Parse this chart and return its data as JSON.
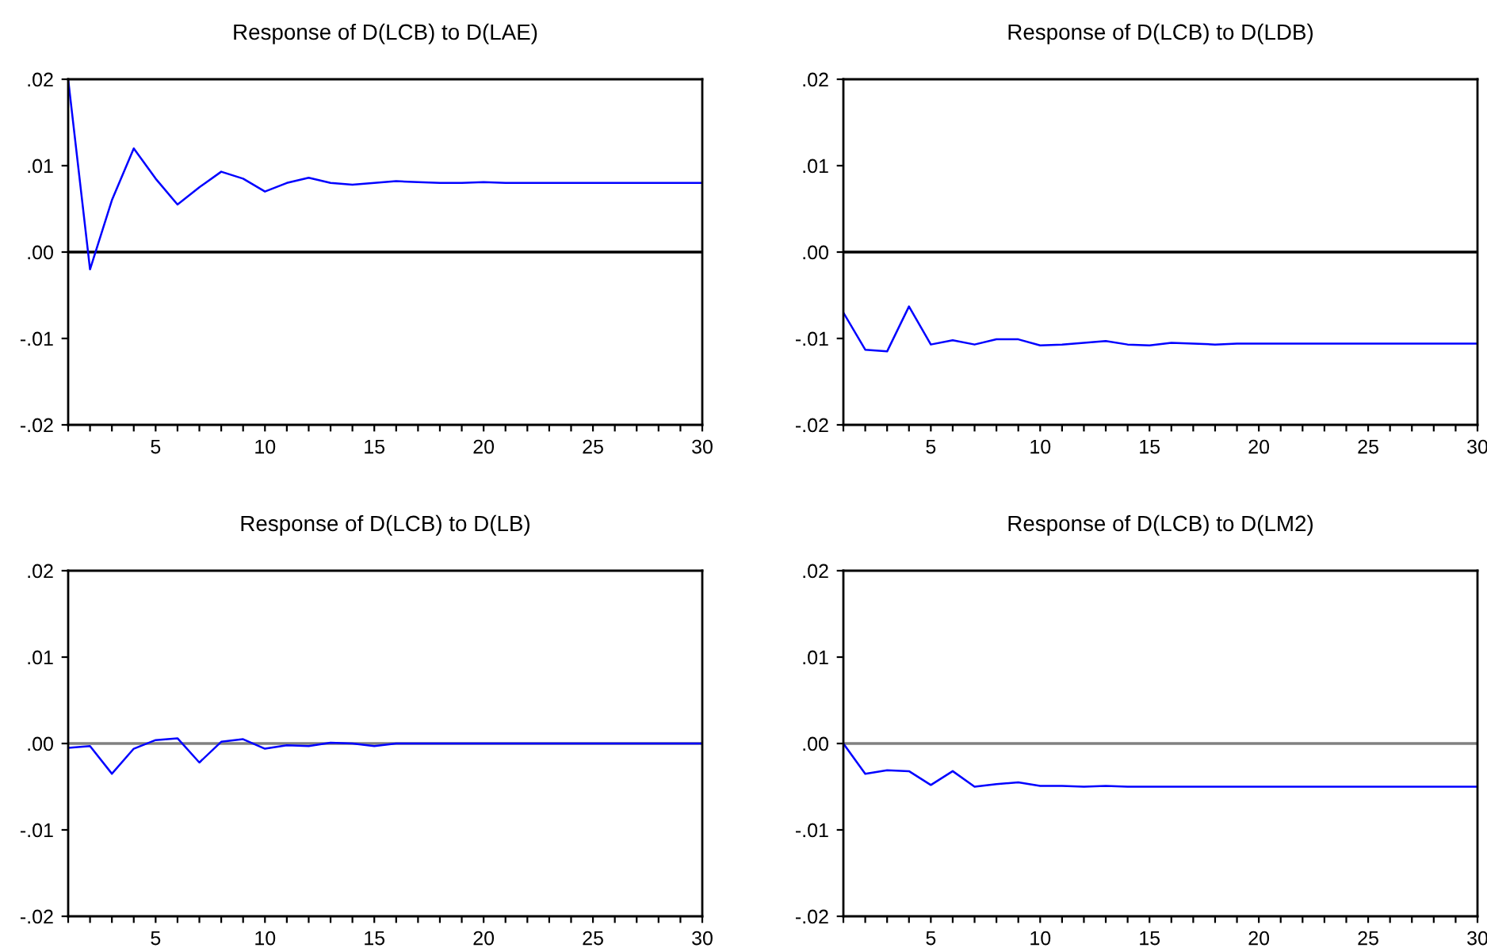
{
  "chart_data": [
    {
      "type": "line",
      "title": "Response of D(LCB) to D(LAE)",
      "x": [
        1,
        2,
        3,
        4,
        5,
        6,
        7,
        8,
        9,
        10,
        11,
        12,
        13,
        14,
        15,
        16,
        17,
        18,
        19,
        20,
        21,
        22,
        23,
        24,
        25,
        26,
        27,
        28,
        29,
        30
      ],
      "series": [
        {
          "color": "#0000ff",
          "values": [
            0.02,
            -0.002,
            0.006,
            0.012,
            0.0085,
            0.0055,
            0.0075,
            0.0093,
            0.0085,
            0.007,
            0.008,
            0.0086,
            0.008,
            0.0078,
            0.008,
            0.0082,
            0.0081,
            0.008,
            0.008,
            0.0081,
            0.008,
            0.008,
            0.008,
            0.008,
            0.008,
            0.008,
            0.008,
            0.008,
            0.008,
            0.008
          ]
        }
      ],
      "xlim": [
        1,
        30
      ],
      "ylim": [
        -0.02,
        0.02
      ],
      "xticks": [
        {
          "value": 1,
          "label": null
        },
        {
          "value": 2,
          "label": null
        },
        {
          "value": 3,
          "label": null
        },
        {
          "value": 4,
          "label": null
        },
        5,
        {
          "value": 6,
          "label": null
        },
        {
          "value": 7,
          "label": null
        },
        {
          "value": 8,
          "label": null
        },
        {
          "value": 9,
          "label": null
        },
        10,
        {
          "value": 11,
          "label": null
        },
        {
          "value": 12,
          "label": null
        },
        {
          "value": 13,
          "label": null
        },
        {
          "value": 14,
          "label": null
        },
        15,
        {
          "value": 16,
          "label": null
        },
        {
          "value": 17,
          "label": null
        },
        {
          "value": 18,
          "label": null
        },
        {
          "value": 19,
          "label": null
        },
        20,
        {
          "value": 21,
          "label": null
        },
        {
          "value": 22,
          "label": null
        },
        {
          "value": 23,
          "label": null
        },
        {
          "value": 24,
          "label": null
        },
        25,
        {
          "value": 26,
          "label": null
        },
        {
          "value": 27,
          "label": null
        },
        {
          "value": 28,
          "label": null
        },
        {
          "value": 29,
          "label": null
        },
        30
      ],
      "yticks": [
        {
          "value": -0.02,
          "label": "-.02"
        },
        {
          "value": -0.01,
          "label": "-.01"
        },
        {
          "value": 0,
          "label": ".00"
        },
        {
          "value": 0.01,
          "label": ".01"
        },
        {
          "value": 0.02,
          "label": ".02"
        }
      ],
      "ref_lines": [
        {
          "axis": "y",
          "value": 0,
          "color": "#000000"
        }
      ],
      "grid": false,
      "legend": false
    },
    {
      "type": "line",
      "title": "Response of D(LCB) to D(LDB)",
      "x": [
        1,
        2,
        3,
        4,
        5,
        6,
        7,
        8,
        9,
        10,
        11,
        12,
        13,
        14,
        15,
        16,
        17,
        18,
        19,
        20,
        21,
        22,
        23,
        24,
        25,
        26,
        27,
        28,
        29,
        30
      ],
      "series": [
        {
          "color": "#0000ff",
          "values": [
            -0.007,
            -0.0113,
            -0.0115,
            -0.0063,
            -0.0107,
            -0.0102,
            -0.0107,
            -0.0101,
            -0.0101,
            -0.0108,
            -0.0107,
            -0.0105,
            -0.0103,
            -0.0107,
            -0.0108,
            -0.0105,
            -0.0106,
            -0.0107,
            -0.0106,
            -0.0106,
            -0.0106,
            -0.0106,
            -0.0106,
            -0.0106,
            -0.0106,
            -0.0106,
            -0.0106,
            -0.0106,
            -0.0106,
            -0.0106
          ]
        }
      ],
      "xlim": [
        1,
        30
      ],
      "ylim": [
        -0.02,
        0.02
      ],
      "xticks": [
        {
          "value": 1,
          "label": null
        },
        {
          "value": 2,
          "label": null
        },
        {
          "value": 3,
          "label": null
        },
        {
          "value": 4,
          "label": null
        },
        5,
        {
          "value": 6,
          "label": null
        },
        {
          "value": 7,
          "label": null
        },
        {
          "value": 8,
          "label": null
        },
        {
          "value": 9,
          "label": null
        },
        10,
        {
          "value": 11,
          "label": null
        },
        {
          "value": 12,
          "label": null
        },
        {
          "value": 13,
          "label": null
        },
        {
          "value": 14,
          "label": null
        },
        15,
        {
          "value": 16,
          "label": null
        },
        {
          "value": 17,
          "label": null
        },
        {
          "value": 18,
          "label": null
        },
        {
          "value": 19,
          "label": null
        },
        20,
        {
          "value": 21,
          "label": null
        },
        {
          "value": 22,
          "label": null
        },
        {
          "value": 23,
          "label": null
        },
        {
          "value": 24,
          "label": null
        },
        25,
        {
          "value": 26,
          "label": null
        },
        {
          "value": 27,
          "label": null
        },
        {
          "value": 28,
          "label": null
        },
        {
          "value": 29,
          "label": null
        },
        30
      ],
      "yticks": [
        {
          "value": -0.02,
          "label": "-.02"
        },
        {
          "value": -0.01,
          "label": "-.01"
        },
        {
          "value": 0,
          "label": ".00"
        },
        {
          "value": 0.01,
          "label": ".01"
        },
        {
          "value": 0.02,
          "label": ".02"
        }
      ],
      "ref_lines": [
        {
          "axis": "y",
          "value": 0,
          "color": "#000000"
        }
      ],
      "grid": false,
      "legend": false
    },
    {
      "type": "line",
      "title": "Response of D(LCB) to D(LB)",
      "x": [
        1,
        2,
        3,
        4,
        5,
        6,
        7,
        8,
        9,
        10,
        11,
        12,
        13,
        14,
        15,
        16,
        17,
        18,
        19,
        20,
        21,
        22,
        23,
        24,
        25,
        26,
        27,
        28,
        29,
        30
      ],
      "series": [
        {
          "color": "#0000ff",
          "values": [
            -0.0005,
            -0.0003,
            -0.0035,
            -0.0006,
            0.0004,
            0.0006,
            -0.0022,
            0.0002,
            0.0005,
            -0.0006,
            -0.0002,
            -0.0003,
            0.0001,
            0.0,
            -0.0003,
            0.0,
            0.0,
            0.0,
            0.0,
            0.0,
            0.0,
            0.0,
            0.0,
            0.0,
            0.0,
            0.0,
            0.0,
            0.0,
            0.0,
            0.0
          ]
        }
      ],
      "xlim": [
        1,
        30
      ],
      "ylim": [
        -0.02,
        0.02
      ],
      "xticks": [
        {
          "value": 1,
          "label": null
        },
        {
          "value": 2,
          "label": null
        },
        {
          "value": 3,
          "label": null
        },
        {
          "value": 4,
          "label": null
        },
        5,
        {
          "value": 6,
          "label": null
        },
        {
          "value": 7,
          "label": null
        },
        {
          "value": 8,
          "label": null
        },
        {
          "value": 9,
          "label": null
        },
        10,
        {
          "value": 11,
          "label": null
        },
        {
          "value": 12,
          "label": null
        },
        {
          "value": 13,
          "label": null
        },
        {
          "value": 14,
          "label": null
        },
        15,
        {
          "value": 16,
          "label": null
        },
        {
          "value": 17,
          "label": null
        },
        {
          "value": 18,
          "label": null
        },
        {
          "value": 19,
          "label": null
        },
        20,
        {
          "value": 21,
          "label": null
        },
        {
          "value": 22,
          "label": null
        },
        {
          "value": 23,
          "label": null
        },
        {
          "value": 24,
          "label": null
        },
        25,
        {
          "value": 26,
          "label": null
        },
        {
          "value": 27,
          "label": null
        },
        {
          "value": 28,
          "label": null
        },
        {
          "value": 29,
          "label": null
        },
        30
      ],
      "yticks": [
        {
          "value": -0.02,
          "label": "-.02"
        },
        {
          "value": -0.01,
          "label": "-.01"
        },
        {
          "value": 0,
          "label": ".00"
        },
        {
          "value": 0.01,
          "label": ".01"
        },
        {
          "value": 0.02,
          "label": ".02"
        }
      ],
      "ref_lines": [
        {
          "axis": "y",
          "value": 0,
          "color": "#808080"
        }
      ],
      "grid": false,
      "legend": false
    },
    {
      "type": "line",
      "title": "Response of D(LCB) to D(LM2)",
      "x": [
        1,
        2,
        3,
        4,
        5,
        6,
        7,
        8,
        9,
        10,
        11,
        12,
        13,
        14,
        15,
        16,
        17,
        18,
        19,
        20,
        21,
        22,
        23,
        24,
        25,
        26,
        27,
        28,
        29,
        30
      ],
      "series": [
        {
          "color": "#0000ff",
          "values": [
            0.0,
            -0.0035,
            -0.0031,
            -0.0032,
            -0.0048,
            -0.0032,
            -0.005,
            -0.0047,
            -0.0045,
            -0.0049,
            -0.0049,
            -0.005,
            -0.0049,
            -0.005,
            -0.005,
            -0.005,
            -0.005,
            -0.005,
            -0.005,
            -0.005,
            -0.005,
            -0.005,
            -0.005,
            -0.005,
            -0.005,
            -0.005,
            -0.005,
            -0.005,
            -0.005,
            -0.005
          ]
        }
      ],
      "xlim": [
        1,
        30
      ],
      "ylim": [
        -0.02,
        0.02
      ],
      "xticks": [
        {
          "value": 1,
          "label": null
        },
        {
          "value": 2,
          "label": null
        },
        {
          "value": 3,
          "label": null
        },
        {
          "value": 4,
          "label": null
        },
        5,
        {
          "value": 6,
          "label": null
        },
        {
          "value": 7,
          "label": null
        },
        {
          "value": 8,
          "label": null
        },
        {
          "value": 9,
          "label": null
        },
        10,
        {
          "value": 11,
          "label": null
        },
        {
          "value": 12,
          "label": null
        },
        {
          "value": 13,
          "label": null
        },
        {
          "value": 14,
          "label": null
        },
        15,
        {
          "value": 16,
          "label": null
        },
        {
          "value": 17,
          "label": null
        },
        {
          "value": 18,
          "label": null
        },
        {
          "value": 19,
          "label": null
        },
        20,
        {
          "value": 21,
          "label": null
        },
        {
          "value": 22,
          "label": null
        },
        {
          "value": 23,
          "label": null
        },
        {
          "value": 24,
          "label": null
        },
        25,
        {
          "value": 26,
          "label": null
        },
        {
          "value": 27,
          "label": null
        },
        {
          "value": 28,
          "label": null
        },
        {
          "value": 29,
          "label": null
        },
        30
      ],
      "yticks": [
        {
          "value": -0.02,
          "label": "-.02"
        },
        {
          "value": -0.01,
          "label": "-.01"
        },
        {
          "value": 0,
          "label": ".00"
        },
        {
          "value": 0.01,
          "label": ".01"
        },
        {
          "value": 0.02,
          "label": ".02"
        }
      ],
      "ref_lines": [
        {
          "axis": "y",
          "value": 0,
          "color": "#808080"
        }
      ],
      "grid": false,
      "legend": false
    }
  ]
}
